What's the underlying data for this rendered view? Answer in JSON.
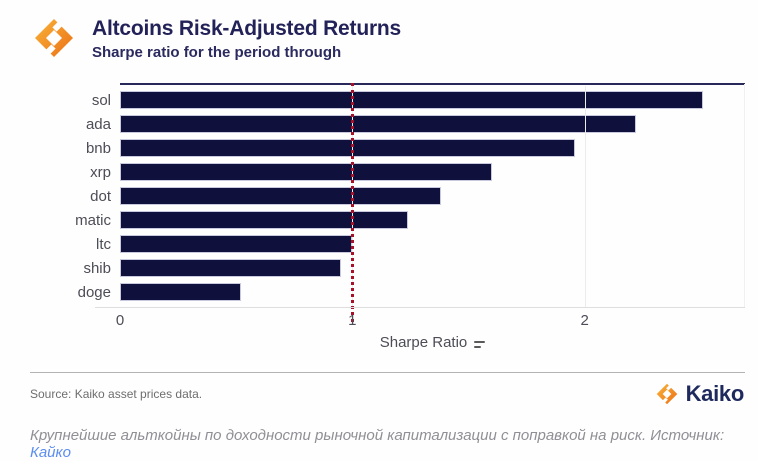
{
  "header": {
    "title": "Altcoins Risk-Adjusted Returns",
    "subtitle": "Sharpe ratio for the period through"
  },
  "chart_data": {
    "type": "bar",
    "orientation": "horizontal",
    "title": "Altcoins Risk-Adjusted Returns",
    "subtitle": "Sharpe ratio for the period through",
    "categories": [
      "sol",
      "ada",
      "bnb",
      "xrp",
      "dot",
      "matic",
      "ltc",
      "shib",
      "doge"
    ],
    "values": [
      2.51,
      2.22,
      1.96,
      1.6,
      1.38,
      1.24,
      1.0,
      0.95,
      0.52
    ],
    "xlabel": "Sharpe Ratio",
    "ylabel": "",
    "xlim": [
      0,
      2.69
    ],
    "xticks": [
      0,
      1,
      2
    ],
    "reference_line": {
      "x": 1,
      "style": "dotted",
      "color": "#a81228"
    },
    "bar_color": "#10103c",
    "grid": "vertical-light",
    "legend_position": "none"
  },
  "footer": {
    "source_text": "Source: Kaiko asset prices data.",
    "brand_name": "Kaiko"
  },
  "caption": {
    "text": "Крупнейшие альткойны по доходности рыночной капитализации с поправкой на риск. Источник: ",
    "link_text": "Кайко"
  },
  "colors": {
    "bar": "#10103c",
    "navy_text": "#232258",
    "reference_red": "#a81228",
    "brand_orange_light": "#f8b43a",
    "brand_orange_dark": "#ec6f15",
    "link_blue": "#5b8def"
  }
}
